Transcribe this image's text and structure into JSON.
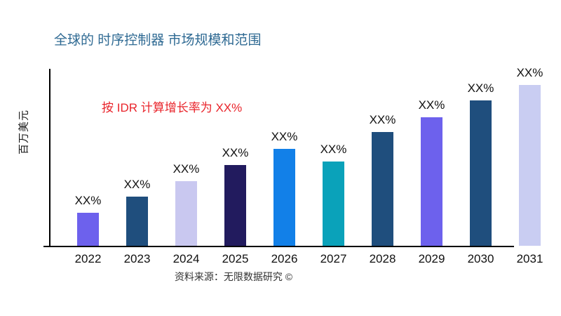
{
  "header": {
    "title": "全球的 时序控制器 市场规模和范围"
  },
  "colors": {
    "title_text": "#2f6a93",
    "annotation_text": "#e9242b",
    "axis": "#000000",
    "label_text": "#111111"
  },
  "chart_data": {
    "type": "bar",
    "title": "全球的 时序控制器 市场规模和范围",
    "xlabel": "",
    "ylabel": "百万美元",
    "annotation": "按 IDR 计算增长率为 XX%",
    "source": "资料来源：无限数据研究 ©",
    "categories": [
      "2022",
      "2023",
      "2024",
      "2025",
      "2026",
      "2027",
      "2028",
      "2029",
      "2030",
      "2031"
    ],
    "values": [
      47,
      70,
      92,
      115,
      138,
      120,
      162,
      183,
      207,
      229
    ],
    "values_note": "relative bar heights; y-axis shows no numeric ticks",
    "bar_labels": [
      "XX%",
      "XX%",
      "XX%",
      "XX%",
      "XX%",
      "XX%",
      "XX%",
      "XX%",
      "XX%",
      "XX%"
    ],
    "bar_colors": [
      "#6d61ed",
      "#1f4e7d",
      "#c9c8f0",
      "#221b5e",
      "#1280e8",
      "#0aa2ba",
      "#1f4e7d",
      "#6d61ed",
      "#1f4e7d",
      "#c9cdf2"
    ],
    "grid": false,
    "legend": false,
    "y_ticks": []
  }
}
